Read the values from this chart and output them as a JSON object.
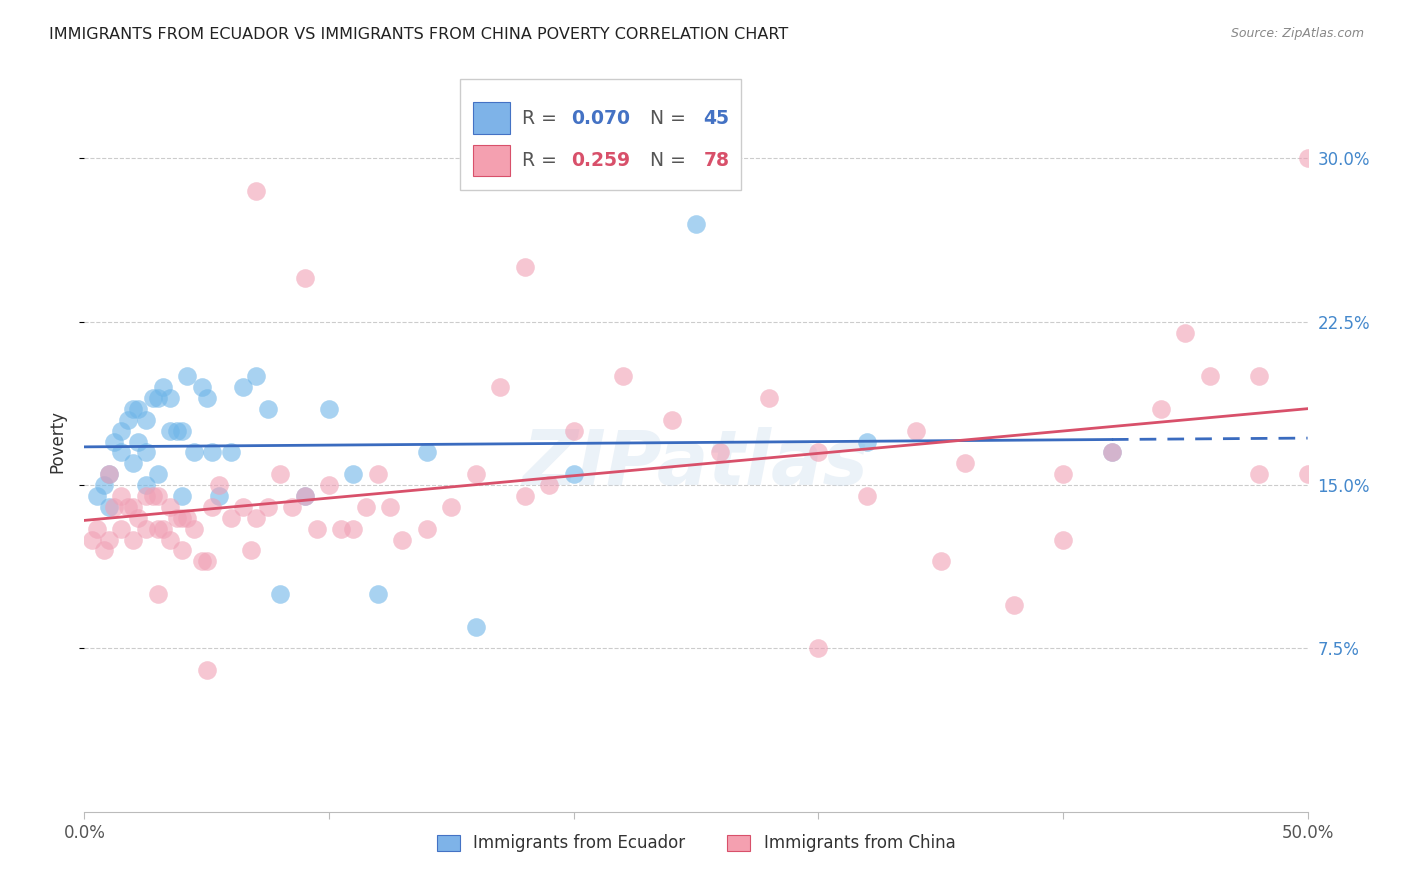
{
  "title": "IMMIGRANTS FROM ECUADOR VS IMMIGRANTS FROM CHINA POVERTY CORRELATION CHART",
  "source": "Source: ZipAtlas.com",
  "ylabel": "Poverty",
  "ytick_labels": [
    "7.5%",
    "15.0%",
    "22.5%",
    "30.0%"
  ],
  "ytick_values": [
    0.075,
    0.15,
    0.225,
    0.3
  ],
  "xlim": [
    0.0,
    0.5
  ],
  "ylim": [
    0.0,
    0.34
  ],
  "legend_color1": "#7EB3E8",
  "legend_color2": "#F4A0B0",
  "series1_label": "Immigrants from Ecuador",
  "series2_label": "Immigrants from China",
  "color_ecuador": "#6EB5E8",
  "color_china": "#F0A0B5",
  "trend_color_ecuador": "#3A6BBF",
  "trend_color_china": "#D8506A",
  "watermark": "ZIPatlas",
  "ecuador_x": [
    0.005,
    0.008,
    0.01,
    0.01,
    0.012,
    0.015,
    0.015,
    0.018,
    0.02,
    0.02,
    0.022,
    0.022,
    0.025,
    0.025,
    0.025,
    0.028,
    0.03,
    0.03,
    0.032,
    0.035,
    0.035,
    0.038,
    0.04,
    0.04,
    0.042,
    0.045,
    0.048,
    0.05,
    0.052,
    0.055,
    0.06,
    0.065,
    0.07,
    0.075,
    0.08,
    0.09,
    0.1,
    0.11,
    0.12,
    0.14,
    0.16,
    0.2,
    0.25,
    0.32,
    0.42
  ],
  "ecuador_y": [
    0.145,
    0.15,
    0.14,
    0.155,
    0.17,
    0.175,
    0.165,
    0.18,
    0.185,
    0.16,
    0.185,
    0.17,
    0.18,
    0.165,
    0.15,
    0.19,
    0.19,
    0.155,
    0.195,
    0.19,
    0.175,
    0.175,
    0.175,
    0.145,
    0.2,
    0.165,
    0.195,
    0.19,
    0.165,
    0.145,
    0.165,
    0.195,
    0.2,
    0.185,
    0.1,
    0.145,
    0.185,
    0.155,
    0.1,
    0.165,
    0.085,
    0.155,
    0.27,
    0.17,
    0.165
  ],
  "china_x": [
    0.003,
    0.005,
    0.008,
    0.01,
    0.01,
    0.012,
    0.015,
    0.015,
    0.018,
    0.02,
    0.02,
    0.022,
    0.025,
    0.025,
    0.028,
    0.03,
    0.03,
    0.032,
    0.035,
    0.035,
    0.038,
    0.04,
    0.04,
    0.042,
    0.045,
    0.048,
    0.05,
    0.052,
    0.055,
    0.06,
    0.065,
    0.068,
    0.07,
    0.075,
    0.08,
    0.085,
    0.09,
    0.095,
    0.1,
    0.105,
    0.11,
    0.115,
    0.12,
    0.125,
    0.13,
    0.14,
    0.15,
    0.16,
    0.17,
    0.18,
    0.19,
    0.2,
    0.22,
    0.24,
    0.26,
    0.28,
    0.3,
    0.32,
    0.34,
    0.36,
    0.38,
    0.4,
    0.42,
    0.44,
    0.46,
    0.48,
    0.5,
    0.07,
    0.09,
    0.18,
    0.3,
    0.35,
    0.4,
    0.45,
    0.48,
    0.03,
    0.05,
    0.5
  ],
  "china_y": [
    0.125,
    0.13,
    0.12,
    0.125,
    0.155,
    0.14,
    0.145,
    0.13,
    0.14,
    0.14,
    0.125,
    0.135,
    0.145,
    0.13,
    0.145,
    0.13,
    0.145,
    0.13,
    0.14,
    0.125,
    0.135,
    0.135,
    0.12,
    0.135,
    0.13,
    0.115,
    0.115,
    0.14,
    0.15,
    0.135,
    0.14,
    0.12,
    0.135,
    0.14,
    0.155,
    0.14,
    0.145,
    0.13,
    0.15,
    0.13,
    0.13,
    0.14,
    0.155,
    0.14,
    0.125,
    0.13,
    0.14,
    0.155,
    0.195,
    0.145,
    0.15,
    0.175,
    0.2,
    0.18,
    0.165,
    0.19,
    0.165,
    0.145,
    0.175,
    0.16,
    0.095,
    0.155,
    0.165,
    0.185,
    0.2,
    0.155,
    0.155,
    0.285,
    0.245,
    0.25,
    0.075,
    0.115,
    0.125,
    0.22,
    0.2,
    0.1,
    0.065,
    0.3
  ]
}
